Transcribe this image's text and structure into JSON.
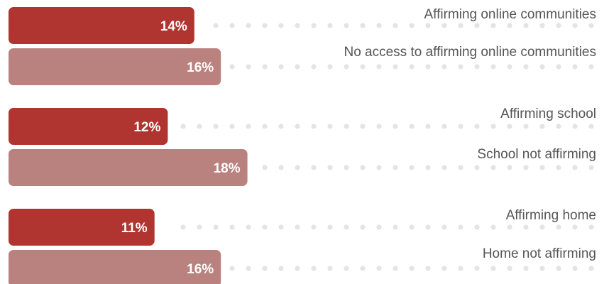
{
  "chart_data": {
    "type": "bar",
    "orientation": "horizontal",
    "unit": "%",
    "categories": [
      "Affirming online communities",
      "No access to affirming online communities",
      "Affirming school",
      "School not affirming",
      "Affirming home",
      "Home not affirming"
    ],
    "values": [
      14,
      16,
      12,
      18,
      11,
      16
    ],
    "value_labels": [
      "14%",
      "16%",
      "12%",
      "18%",
      "11%",
      "16%"
    ],
    "bar_colors": [
      "#b03530",
      "#b9827f",
      "#b03530",
      "#b9827f",
      "#b03530",
      "#b9827f"
    ],
    "dot_color": "#e3e5e5",
    "title": "",
    "xlabel": "",
    "ylabel": "",
    "grid": false,
    "legend": false
  }
}
